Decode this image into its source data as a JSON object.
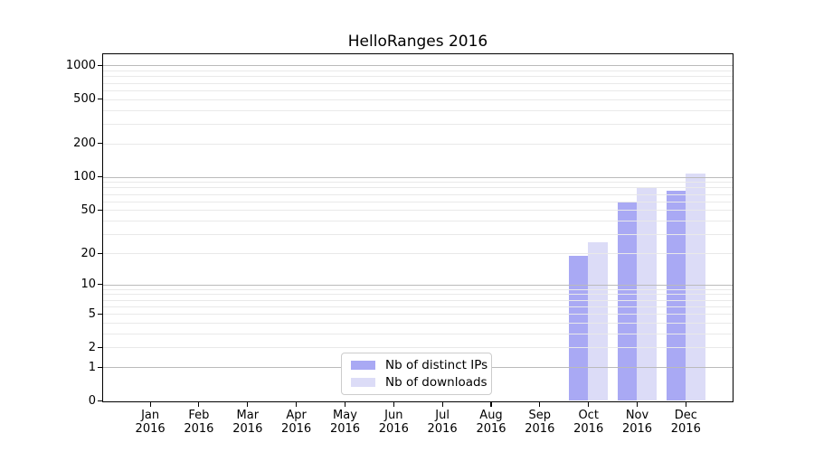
{
  "chart_data": {
    "type": "bar",
    "title": "HelloRanges 2016",
    "xlabel": "",
    "ylabel": "",
    "year_label": "2016",
    "categories": [
      "Jan",
      "Feb",
      "Mar",
      "Apr",
      "May",
      "Jun",
      "Jul",
      "Aug",
      "Sep",
      "Oct",
      "Nov",
      "Dec"
    ],
    "series": [
      {
        "name": "Nb of distinct IPs",
        "color": "#a9a9f4",
        "values": [
          0,
          0,
          0,
          0,
          0,
          0,
          0,
          0,
          0,
          19,
          60,
          75
        ]
      },
      {
        "name": "Nb of downloads",
        "color": "#dcdcf7",
        "values": [
          0,
          0,
          0,
          0,
          0,
          0,
          0,
          0,
          0,
          25,
          80,
          106
        ]
      }
    ],
    "y_scale": "log10(1+value)",
    "ylim": [
      0,
      1260
    ],
    "y_tick_values": [
      0,
      1,
      2,
      5,
      10,
      20,
      50,
      100,
      200,
      500,
      1000
    ],
    "y_tick_labels": [
      "0",
      "1",
      "2",
      "5",
      "10",
      "20",
      "50",
      "100",
      "200",
      "500",
      "1000"
    ],
    "major_grid_values": [
      1,
      10,
      100,
      1000
    ],
    "minor_grid_values": [
      2,
      3,
      4,
      5,
      6,
      7,
      8,
      9,
      20,
      30,
      40,
      50,
      60,
      70,
      80,
      90,
      200,
      300,
      400,
      500,
      600,
      700,
      800,
      900
    ],
    "grid": "both, drawn above bars",
    "legend_position": "lower center inside plot",
    "colors": {
      "background": "#ffffff",
      "spine": "#000000",
      "major_grid": "#bbbbbb",
      "minor_grid": "#e9e9e9",
      "legend_border": "#cccccc",
      "text": "#000000"
    }
  }
}
